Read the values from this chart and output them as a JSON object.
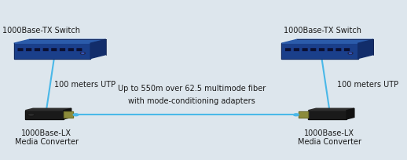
{
  "bg_color": "#dde6ed",
  "line_color": "#4ab8e8",
  "line_width": 1.5,
  "text_color": "#1a1a1a",
  "font_size": 7.0,
  "left_switch_label": "1000Base-TX Switch",
  "right_switch_label": "1000Base-TX Switch",
  "left_converter_label": "1000Base-LX\nMedia Converter",
  "right_converter_label": "1000Base-LX\nMedia Converter",
  "left_utp_label": "100 meters UTP",
  "right_utp_label": "100 meters UTP",
  "center_label_line1": "Up to 550m over 62.5 multimode fiber",
  "center_label_line2": "with mode-conditioning adapters",
  "lsx": 0.135,
  "lsy": 0.68,
  "rsx": 0.835,
  "rsy": 0.68,
  "lcx": 0.115,
  "lcy": 0.28,
  "rcx": 0.855,
  "rcy": 0.28
}
